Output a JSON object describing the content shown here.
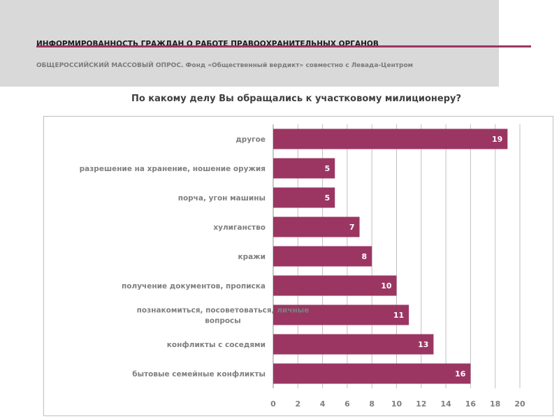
{
  "header": {
    "title": "ИНФОРМИРОВАННОСТЬ ГРАЖДАН О РАБОТЕ ПРАВООХРАНИТЕЛЬНЫХ ОРГАНОВ",
    "subtitle": "ОБЩЕРОССИЙСКИЙ МАССОВЫЙ ОПРОС. Фонд «Общественный вердикт» совместно с Левада-Центром"
  },
  "colors": {
    "bar": "#9b3663",
    "grid": "#bfbfbf",
    "band": "#d9d9d9"
  },
  "chart_data": {
    "type": "bar",
    "orientation": "horizontal",
    "title": "По какому делу Вы обращались к участковому милиционеру?",
    "categories": [
      "другое",
      "разрешение на хранение, ношение оружия",
      "порча, угон машины",
      "хулиганство",
      "кражи",
      "получение документов, прописка",
      "познакомиться, посоветоваться, личные вопросы",
      "конфликты с соседями",
      "бытовые семейные конфликты"
    ],
    "values": [
      19,
      5,
      5,
      7,
      8,
      10,
      11,
      13,
      16
    ],
    "xlim": [
      0,
      20
    ],
    "xticks": [
      0,
      2,
      4,
      6,
      8,
      10,
      12,
      14,
      16,
      18,
      20
    ],
    "grid": true,
    "data_labels": true
  }
}
